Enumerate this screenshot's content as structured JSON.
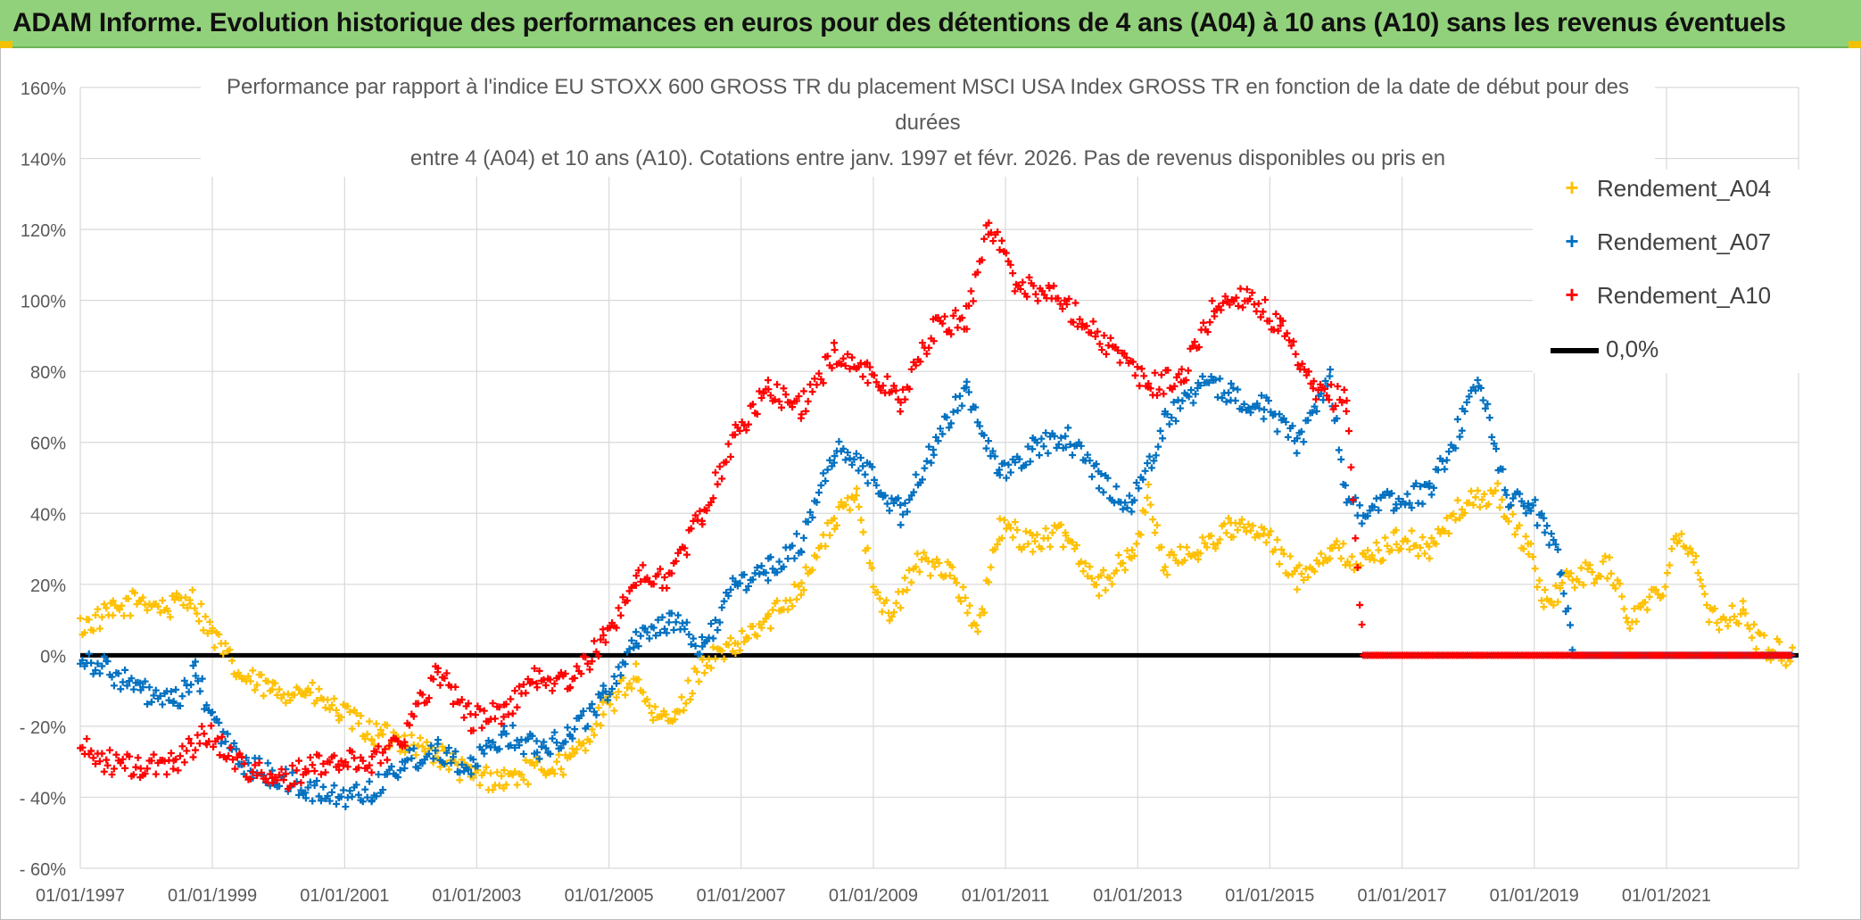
{
  "header": {
    "title": "ADAM Informe. Evolution historique des performances en euros pour des détentions de 4 ans (A04) à 10 ans (A10) sans les revenus éventuels"
  },
  "chart_data": {
    "type": "scatter",
    "title_lines": [
      "Performance par rapport à l'indice EU STOXX 600 GROSS TR  du placement MSCI USA Index GROSS TR en fonction de la date de début pour des",
      "durées",
      "entre 4 (A04) et 10 ans (A10). Cotations entre janv. 1997 et févr. 2026. Pas de revenus disponibles ou pris en"
    ],
    "xlim": [
      "1997-01-01",
      "2023-01-01"
    ],
    "ylim": [
      -60,
      160
    ],
    "y_unit": "%",
    "x_ticks": [
      "01/01/1997",
      "01/01/1999",
      "01/01/2001",
      "01/01/2003",
      "01/01/2005",
      "01/01/2007",
      "01/01/2009",
      "01/01/2011",
      "01/01/2013",
      "01/01/2015",
      "01/01/2017",
      "01/01/2019",
      "01/01/2021"
    ],
    "y_ticks": [
      "160%",
      "140%",
      "120%",
      "100%",
      "80%",
      "60%",
      "40%",
      "20%",
      "0%",
      "- 20%",
      "- 40%",
      "- 60%"
    ],
    "grid": true,
    "legend_position": "right",
    "series": [
      {
        "name": "Rendement_A04",
        "color": "#ffc000",
        "marker": "+",
        "points": [
          [
            "1997-01-01",
            8
          ],
          [
            "1997-07-01",
            12
          ],
          [
            "1997-12-01",
            16
          ],
          [
            "1998-05-01",
            13
          ],
          [
            "1998-09-01",
            17
          ],
          [
            "1999-01-01",
            6
          ],
          [
            "1999-06-01",
            -6
          ],
          [
            "1999-12-01",
            -10
          ],
          [
            "2000-06-01",
            -10
          ],
          [
            "2000-12-01",
            -16
          ],
          [
            "2001-06-01",
            -22
          ],
          [
            "2001-12-01",
            -24
          ],
          [
            "2002-06-01",
            -28
          ],
          [
            "2002-12-01",
            -34
          ],
          [
            "2003-06-01",
            -35
          ],
          [
            "2003-12-01",
            -32
          ],
          [
            "2004-06-01",
            -30
          ],
          [
            "2004-12-01",
            -16
          ],
          [
            "2005-06-01",
            -5
          ],
          [
            "2005-09-01",
            -18
          ],
          [
            "2006-01-01",
            -18
          ],
          [
            "2006-06-01",
            -2
          ],
          [
            "2006-12-01",
            2
          ],
          [
            "2007-06-01",
            10
          ],
          [
            "2007-12-01",
            20
          ],
          [
            "2008-06-01",
            38
          ],
          [
            "2008-10-01",
            45
          ],
          [
            "2009-01-01",
            22
          ],
          [
            "2009-04-01",
            10
          ],
          [
            "2009-09-01",
            26
          ],
          [
            "2010-03-01",
            25
          ],
          [
            "2010-08-01",
            6
          ],
          [
            "2010-12-01",
            36
          ],
          [
            "2011-06-01",
            32
          ],
          [
            "2011-12-01",
            34
          ],
          [
            "2012-06-01",
            20
          ],
          [
            "2012-12-01",
            28
          ],
          [
            "2013-03-01",
            45
          ],
          [
            "2013-06-01",
            25
          ],
          [
            "2013-12-01",
            30
          ],
          [
            "2014-06-01",
            36
          ],
          [
            "2014-12-01",
            34
          ],
          [
            "2015-06-01",
            22
          ],
          [
            "2015-12-01",
            30
          ],
          [
            "2016-06-01",
            26
          ],
          [
            "2016-12-01",
            33
          ],
          [
            "2017-06-01",
            30
          ],
          [
            "2017-12-01",
            42
          ],
          [
            "2018-06-01",
            46
          ],
          [
            "2018-12-01",
            30
          ],
          [
            "2019-03-01",
            15
          ],
          [
            "2019-08-01",
            22
          ],
          [
            "2020-03-01",
            25
          ],
          [
            "2020-06-01",
            10
          ],
          [
            "2020-12-01",
            18
          ],
          [
            "2021-03-01",
            35
          ],
          [
            "2021-06-01",
            28
          ],
          [
            "2021-09-01",
            10
          ],
          [
            "2022-03-01",
            12
          ],
          [
            "2022-06-01",
            3
          ],
          [
            "2022-12-01",
            0
          ]
        ]
      },
      {
        "name": "Rendement_A07",
        "color": "#0070c0",
        "marker": "+",
        "points": [
          [
            "1997-01-01",
            0
          ],
          [
            "1997-06-01",
            -4
          ],
          [
            "1997-12-01",
            -10
          ],
          [
            "1998-06-01",
            -14
          ],
          [
            "1998-10-01",
            -5
          ],
          [
            "1999-01-01",
            -18
          ],
          [
            "1999-06-01",
            -30
          ],
          [
            "1999-12-01",
            -34
          ],
          [
            "2000-06-01",
            -38
          ],
          [
            "2000-12-01",
            -40
          ],
          [
            "2001-06-01",
            -38
          ],
          [
            "2001-12-01",
            -30
          ],
          [
            "2002-06-01",
            -26
          ],
          [
            "2002-12-01",
            -32
          ],
          [
            "2003-06-01",
            -22
          ],
          [
            "2003-12-01",
            -26
          ],
          [
            "2004-06-01",
            -22
          ],
          [
            "2004-12-01",
            -12
          ],
          [
            "2005-06-01",
            5
          ],
          [
            "2005-12-01",
            10
          ],
          [
            "2006-06-01",
            2
          ],
          [
            "2006-12-01",
            20
          ],
          [
            "2007-06-01",
            24
          ],
          [
            "2007-12-01",
            32
          ],
          [
            "2008-06-01",
            58
          ],
          [
            "2008-12-01",
            52
          ],
          [
            "2009-06-01",
            40
          ],
          [
            "2009-12-01",
            58
          ],
          [
            "2010-06-01",
            76
          ],
          [
            "2010-12-01",
            50
          ],
          [
            "2011-06-01",
            58
          ],
          [
            "2011-12-01",
            62
          ],
          [
            "2012-06-01",
            50
          ],
          [
            "2012-12-01",
            42
          ],
          [
            "2013-06-01",
            66
          ],
          [
            "2013-12-01",
            76
          ],
          [
            "2014-06-01",
            74
          ],
          [
            "2014-12-01",
            70
          ],
          [
            "2015-06-01",
            60
          ],
          [
            "2015-12-01",
            78
          ],
          [
            "2016-03-01",
            44
          ],
          [
            "2016-06-01",
            40
          ],
          [
            "2016-12-01",
            44
          ],
          [
            "2017-06-01",
            46
          ],
          [
            "2017-12-01",
            66
          ],
          [
            "2018-03-01",
            78
          ],
          [
            "2018-08-01",
            45
          ],
          [
            "2018-12-01",
            42
          ],
          [
            "2019-03-01",
            38
          ],
          [
            "2019-06-01",
            25
          ],
          [
            "2019-08-01",
            0
          ],
          [
            "2022-12-01",
            0
          ]
        ]
      },
      {
        "name": "Rendement_A10",
        "color": "#ff0000",
        "marker": "+",
        "points": [
          [
            "1997-01-01",
            -26
          ],
          [
            "1997-06-01",
            -30
          ],
          [
            "1997-12-01",
            -32
          ],
          [
            "1998-06-01",
            -30
          ],
          [
            "1998-12-01",
            -22
          ],
          [
            "1999-06-01",
            -30
          ],
          [
            "1999-12-01",
            -36
          ],
          [
            "2000-06-01",
            -32
          ],
          [
            "2000-12-01",
            -30
          ],
          [
            "2001-06-01",
            -30
          ],
          [
            "2001-12-01",
            -22
          ],
          [
            "2002-06-01",
            -4
          ],
          [
            "2002-12-01",
            -18
          ],
          [
            "2003-06-01",
            -16
          ],
          [
            "2003-12-01",
            -6
          ],
          [
            "2004-06-01",
            -8
          ],
          [
            "2004-12-01",
            4
          ],
          [
            "2005-06-01",
            22
          ],
          [
            "2005-12-01",
            22
          ],
          [
            "2006-06-01",
            40
          ],
          [
            "2006-12-01",
            62
          ],
          [
            "2007-06-01",
            75
          ],
          [
            "2007-12-01",
            70
          ],
          [
            "2008-06-01",
            85
          ],
          [
            "2008-12-01",
            80
          ],
          [
            "2009-06-01",
            72
          ],
          [
            "2009-12-01",
            92
          ],
          [
            "2010-06-01",
            95
          ],
          [
            "2010-10-01",
            122
          ],
          [
            "2011-03-01",
            105
          ],
          [
            "2011-09-01",
            102
          ],
          [
            "2012-03-01",
            95
          ],
          [
            "2012-09-01",
            85
          ],
          [
            "2013-03-01",
            76
          ],
          [
            "2013-09-01",
            78
          ],
          [
            "2014-03-01",
            98
          ],
          [
            "2014-09-01",
            102
          ],
          [
            "2015-03-01",
            92
          ],
          [
            "2015-09-01",
            74
          ],
          [
            "2016-03-01",
            72
          ],
          [
            "2016-06-01",
            0
          ],
          [
            "2022-12-01",
            0
          ]
        ]
      }
    ],
    "reference_line": {
      "name": "0,0%",
      "value": 0,
      "color": "#000000"
    }
  }
}
